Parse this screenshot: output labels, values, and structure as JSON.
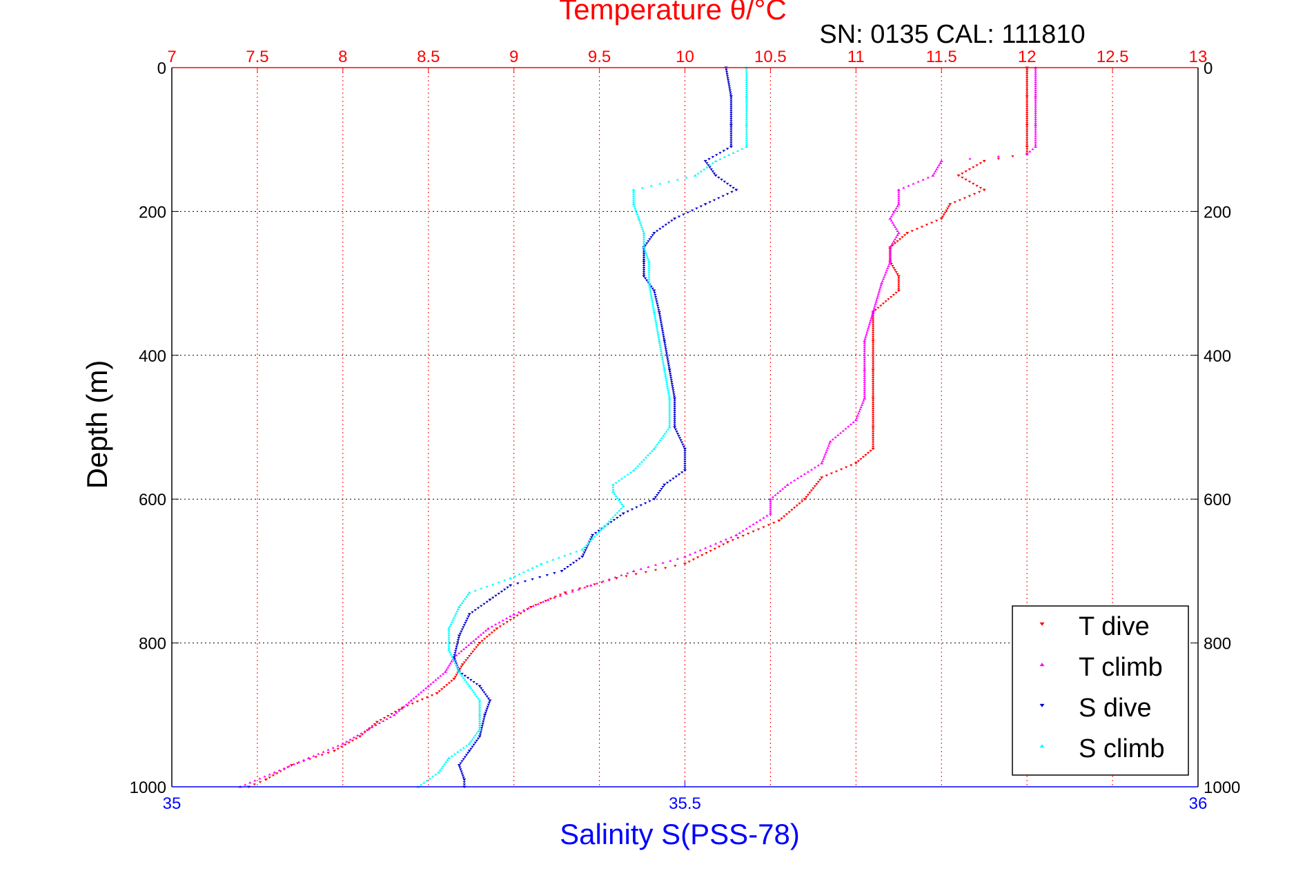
{
  "chart_data": {
    "type": "scatter",
    "title": "Temperature θ/°C",
    "subtitle": "SN: 0135  CAL: 111810",
    "xlabel": "Salinity S(PSS-78)",
    "ylabel": "Depth (m)",
    "x_top": {
      "label": "Temperature θ/°C",
      "range": [
        7,
        13
      ],
      "ticks": [
        "7",
        "7.5",
        "8",
        "8.5",
        "9",
        "9.5",
        "10",
        "10.5",
        "11",
        "11.5",
        "12",
        "12.5",
        "13"
      ],
      "color": "#ff0000"
    },
    "x_bottom": {
      "label": "Salinity S(PSS-78)",
      "range": [
        35,
        36
      ],
      "ticks": [
        "35",
        "35.5",
        "36"
      ],
      "color": "#0000ff"
    },
    "y": {
      "label": "Depth (m)",
      "range": [
        0,
        1000
      ],
      "reversed": true,
      "ticks": [
        "0",
        "200",
        "400",
        "600",
        "800",
        "1000"
      ]
    },
    "grid": true,
    "legend_position": "bottom-right",
    "series": [
      {
        "name": "T dive",
        "axis": "temperature",
        "color": "#ff0000",
        "marker": "triangle-down",
        "points": [
          [
            0,
            12.0
          ],
          [
            40,
            12.0
          ],
          [
            80,
            12.0
          ],
          [
            110,
            12.0
          ],
          [
            120,
            12.0
          ],
          [
            130,
            11.75
          ],
          [
            150,
            11.6
          ],
          [
            170,
            11.75
          ],
          [
            190,
            11.55
          ],
          [
            210,
            11.5
          ],
          [
            230,
            11.3
          ],
          [
            250,
            11.2
          ],
          [
            270,
            11.2
          ],
          [
            290,
            11.25
          ],
          [
            310,
            11.25
          ],
          [
            340,
            11.1
          ],
          [
            380,
            11.1
          ],
          [
            420,
            11.1
          ],
          [
            460,
            11.1
          ],
          [
            500,
            11.1
          ],
          [
            530,
            11.1
          ],
          [
            550,
            11.0
          ],
          [
            570,
            10.8
          ],
          [
            600,
            10.7
          ],
          [
            630,
            10.55
          ],
          [
            660,
            10.25
          ],
          [
            690,
            10.0
          ],
          [
            710,
            9.6
          ],
          [
            730,
            9.3
          ],
          [
            750,
            9.1
          ],
          [
            780,
            8.9
          ],
          [
            800,
            8.8
          ],
          [
            830,
            8.7
          ],
          [
            850,
            8.65
          ],
          [
            870,
            8.55
          ],
          [
            890,
            8.35
          ],
          [
            910,
            8.2
          ],
          [
            930,
            8.1
          ],
          [
            950,
            7.95
          ],
          [
            970,
            7.7
          ],
          [
            990,
            7.55
          ],
          [
            1000,
            7.45
          ]
        ]
      },
      {
        "name": "T climb",
        "axis": "temperature",
        "color": "#ff00ff",
        "marker": "triangle-up",
        "points": [
          [
            0,
            12.05
          ],
          [
            40,
            12.05
          ],
          [
            80,
            12.05
          ],
          [
            110,
            12.05
          ],
          [
            120,
            12.0
          ],
          [
            130,
            11.5
          ],
          [
            150,
            11.45
          ],
          [
            170,
            11.25
          ],
          [
            190,
            11.25
          ],
          [
            210,
            11.2
          ],
          [
            230,
            11.25
          ],
          [
            250,
            11.2
          ],
          [
            270,
            11.2
          ],
          [
            300,
            11.15
          ],
          [
            340,
            11.1
          ],
          [
            380,
            11.05
          ],
          [
            420,
            11.05
          ],
          [
            460,
            11.05
          ],
          [
            490,
            11.0
          ],
          [
            520,
            10.85
          ],
          [
            550,
            10.8
          ],
          [
            580,
            10.6
          ],
          [
            600,
            10.5
          ],
          [
            620,
            10.5
          ],
          [
            650,
            10.3
          ],
          [
            680,
            10.0
          ],
          [
            700,
            9.7
          ],
          [
            720,
            9.45
          ],
          [
            740,
            9.2
          ],
          [
            760,
            9.0
          ],
          [
            780,
            8.85
          ],
          [
            800,
            8.75
          ],
          [
            820,
            8.65
          ],
          [
            840,
            8.6
          ],
          [
            860,
            8.5
          ],
          [
            880,
            8.4
          ],
          [
            900,
            8.3
          ],
          [
            920,
            8.15
          ],
          [
            940,
            8.0
          ],
          [
            960,
            7.8
          ],
          [
            980,
            7.6
          ],
          [
            1000,
            7.4
          ]
        ]
      },
      {
        "name": "S dive",
        "axis": "salinity",
        "color": "#0000cc",
        "marker": "triangle-down",
        "points": [
          [
            0,
            35.54
          ],
          [
            40,
            35.545
          ],
          [
            80,
            35.545
          ],
          [
            110,
            35.545
          ],
          [
            130,
            35.52
          ],
          [
            150,
            35.53
          ],
          [
            170,
            35.55
          ],
          [
            190,
            35.52
          ],
          [
            210,
            35.49
          ],
          [
            230,
            35.47
          ],
          [
            250,
            35.46
          ],
          [
            270,
            35.46
          ],
          [
            290,
            35.46
          ],
          [
            310,
            35.47
          ],
          [
            340,
            35.475
          ],
          [
            380,
            35.48
          ],
          [
            420,
            35.485
          ],
          [
            460,
            35.49
          ],
          [
            500,
            35.49
          ],
          [
            530,
            35.5
          ],
          [
            560,
            35.5
          ],
          [
            580,
            35.48
          ],
          [
            600,
            35.47
          ],
          [
            620,
            35.44
          ],
          [
            650,
            35.41
          ],
          [
            680,
            35.4
          ],
          [
            700,
            35.38
          ],
          [
            720,
            35.33
          ],
          [
            740,
            35.31
          ],
          [
            760,
            35.29
          ],
          [
            790,
            35.28
          ],
          [
            820,
            35.275
          ],
          [
            840,
            35.28
          ],
          [
            860,
            35.3
          ],
          [
            880,
            35.31
          ],
          [
            900,
            35.305
          ],
          [
            930,
            35.3
          ],
          [
            950,
            35.29
          ],
          [
            970,
            35.28
          ],
          [
            990,
            35.285
          ],
          [
            1000,
            35.285
          ]
        ]
      },
      {
        "name": "S climb",
        "axis": "salinity",
        "color": "#00ffff",
        "marker": "triangle-up",
        "points": [
          [
            0,
            35.56
          ],
          [
            40,
            35.56
          ],
          [
            80,
            35.56
          ],
          [
            110,
            35.56
          ],
          [
            130,
            35.53
          ],
          [
            150,
            35.51
          ],
          [
            170,
            35.45
          ],
          [
            190,
            35.45
          ],
          [
            210,
            35.455
          ],
          [
            230,
            35.46
          ],
          [
            250,
            35.46
          ],
          [
            270,
            35.465
          ],
          [
            300,
            35.465
          ],
          [
            340,
            35.47
          ],
          [
            380,
            35.475
          ],
          [
            420,
            35.48
          ],
          [
            460,
            35.485
          ],
          [
            500,
            35.485
          ],
          [
            530,
            35.47
          ],
          [
            560,
            35.45
          ],
          [
            580,
            35.43
          ],
          [
            590,
            35.43
          ],
          [
            610,
            35.44
          ],
          [
            640,
            35.42
          ],
          [
            670,
            35.4
          ],
          [
            690,
            35.36
          ],
          [
            710,
            35.33
          ],
          [
            730,
            35.29
          ],
          [
            750,
            35.28
          ],
          [
            780,
            35.27
          ],
          [
            810,
            35.27
          ],
          [
            840,
            35.28
          ],
          [
            860,
            35.29
          ],
          [
            880,
            35.3
          ],
          [
            900,
            35.3
          ],
          [
            920,
            35.3
          ],
          [
            940,
            35.29
          ],
          [
            960,
            35.27
          ],
          [
            980,
            35.26
          ],
          [
            1000,
            35.24
          ]
        ]
      }
    ]
  }
}
